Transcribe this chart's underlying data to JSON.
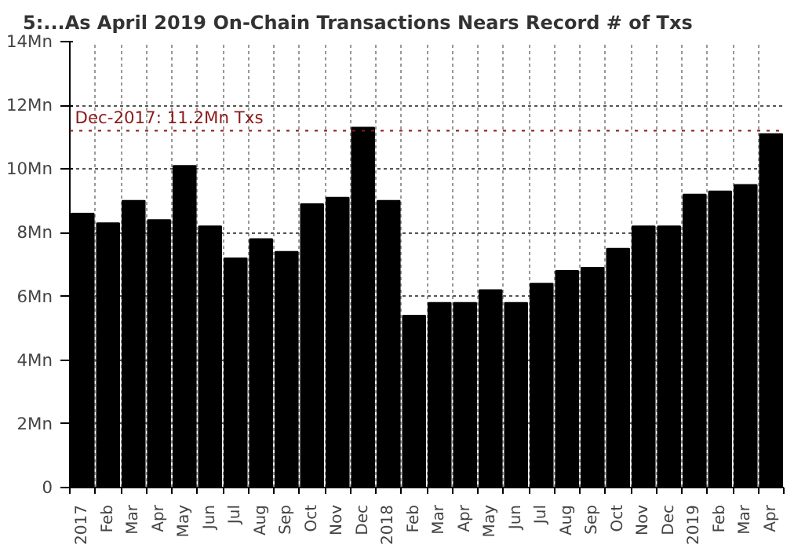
{
  "chart_data": {
    "type": "bar",
    "title": "5:...As April 2019 On-Chain Transactions Nears Record # of Txs",
    "categories": [
      "2017",
      "Feb",
      "Mar",
      "Apr",
      "May",
      "Jun",
      "Jul",
      "Aug",
      "Sep",
      "Oct",
      "Nov",
      "Dec",
      "2018",
      "Feb",
      "Mar",
      "Apr",
      "May",
      "Jun",
      "Jul",
      "Aug",
      "Sep",
      "Oct",
      "Nov",
      "Dec",
      "2019",
      "Feb",
      "Mar",
      "Apr"
    ],
    "values": [
      8.6,
      8.3,
      9.0,
      8.4,
      10.1,
      8.2,
      7.2,
      7.8,
      7.4,
      8.9,
      9.1,
      11.3,
      9.0,
      5.4,
      5.8,
      5.8,
      6.2,
      5.8,
      6.4,
      6.8,
      6.9,
      7.5,
      8.2,
      8.2,
      9.2,
      9.3,
      9.5,
      11.1
    ],
    "color": "#000000",
    "ylim": [
      0,
      14
    ],
    "yticks": [
      0,
      {
        "value": 2,
        "label": "2Mn"
      },
      {
        "value": 4,
        "label": "4Mn"
      },
      {
        "value": 6,
        "label": "6Mn"
      },
      {
        "value": 8,
        "label": "8Mn"
      },
      {
        "value": 10,
        "label": "10Mn"
      },
      {
        "value": 12,
        "label": "12Mn"
      },
      {
        "value": 14,
        "label": "14Mn"
      }
    ],
    "ref_lines": [
      {
        "axis": "y",
        "value": 11.2,
        "label": "Dec-2017: 11.2Mn Txs",
        "color": "#8b1a1a",
        "line_style": "dotted"
      }
    ],
    "grid": true
  }
}
